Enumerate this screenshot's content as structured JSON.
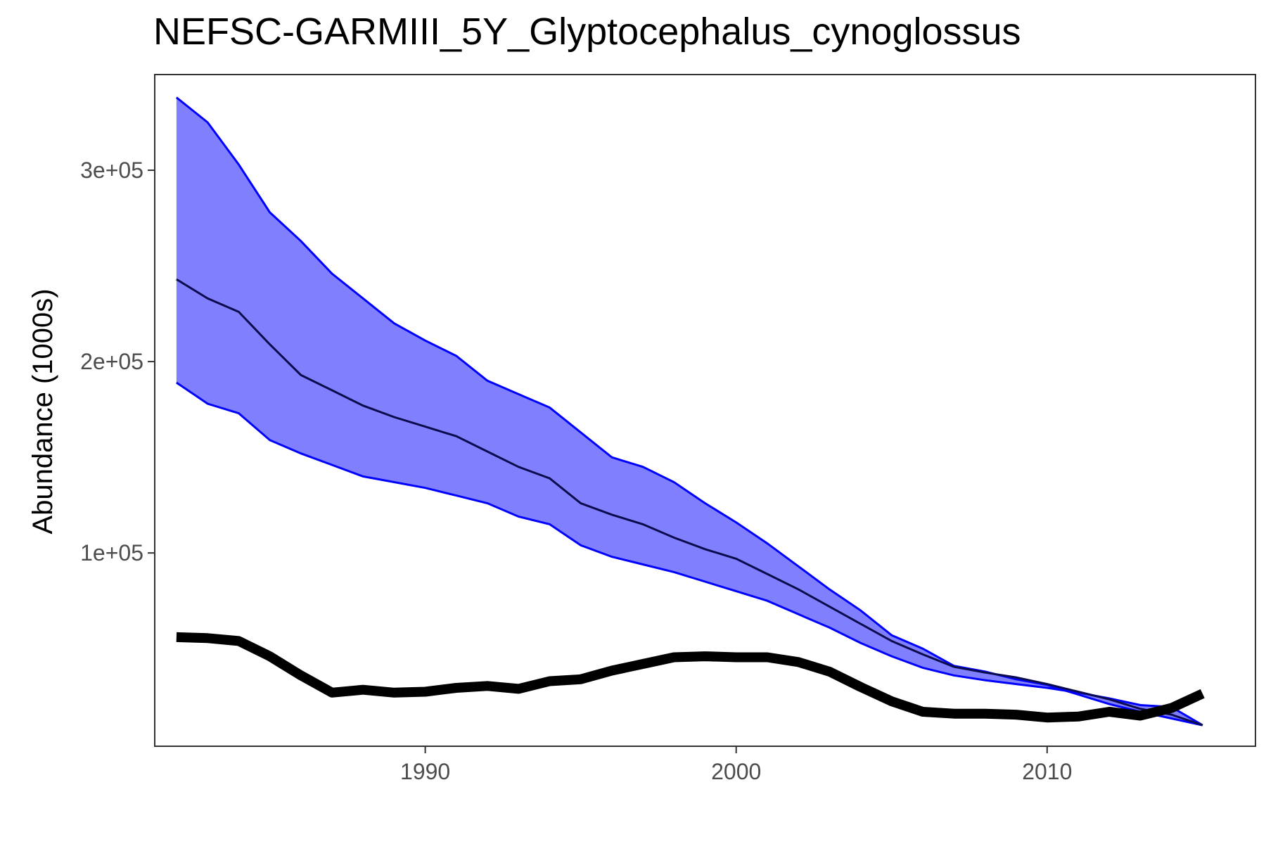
{
  "chart_data": {
    "type": "line",
    "title": "NEFSC-GARMIII_5Y_Glyptocephalus_cynoglossus",
    "xlabel": "",
    "ylabel": "Abundance (1000s)",
    "xlim": [
      1981.3,
      2016.7
    ],
    "ylim": [
      -1000,
      350000
    ],
    "x_ticks": [
      1990,
      2000,
      2010
    ],
    "y_ticks": [
      100000,
      200000,
      300000
    ],
    "y_tick_labels": [
      "1e+05",
      "2e+05",
      "3e+05"
    ],
    "grid": false,
    "legend": "none",
    "colors": {
      "band_fill": "#8080ff",
      "band_edge": "#0000ff",
      "median": "#0b0b4d",
      "observed": "#000000",
      "frame": "#333333"
    },
    "x": [
      1982,
      1983,
      1984,
      1985,
      1986,
      1987,
      1988,
      1989,
      1990,
      1991,
      1992,
      1993,
      1994,
      1995,
      1996,
      1997,
      1998,
      1999,
      2000,
      2001,
      2002,
      2003,
      2004,
      2005,
      2006,
      2007,
      2008,
      2009,
      2010,
      2011,
      2012,
      2013,
      2014,
      2015
    ],
    "series": [
      {
        "role": "band-upper",
        "values": [
          338000,
          325000,
          303000,
          278000,
          263000,
          246000,
          233000,
          220000,
          211000,
          203000,
          190000,
          183000,
          176000,
          163000,
          150000,
          145000,
          137000,
          126000,
          116000,
          105000,
          93000,
          81000,
          70000,
          57000,
          50000,
          41000,
          38000,
          34000,
          31000,
          26000,
          21000,
          17000,
          13500,
          10000
        ]
      },
      {
        "role": "band-lower",
        "values": [
          189000,
          178000,
          173000,
          159000,
          152000,
          146000,
          140000,
          137000,
          134000,
          130000,
          126000,
          119000,
          115000,
          104000,
          98000,
          94000,
          90000,
          85000,
          80000,
          75000,
          68000,
          61000,
          53000,
          46000,
          40000,
          36000,
          33500,
          31500,
          29500,
          27000,
          24000,
          20500,
          19500,
          10000
        ]
      },
      {
        "role": "median",
        "values": [
          243000,
          233000,
          226000,
          209000,
          193000,
          185000,
          177000,
          171000,
          166000,
          161000,
          153000,
          145000,
          139000,
          126000,
          120000,
          115000,
          108000,
          102000,
          97000,
          89000,
          81000,
          72000,
          63000,
          54000,
          47000,
          40500,
          37500,
          35000,
          31500,
          27500,
          23500,
          18500,
          15500,
          10000
        ]
      },
      {
        "role": "observed",
        "values": [
          56000,
          55500,
          54000,
          46000,
          36000,
          27000,
          28500,
          27000,
          27500,
          29500,
          30500,
          29000,
          33000,
          34000,
          38500,
          42000,
          45500,
          46000,
          45500,
          45500,
          43000,
          38000,
          30000,
          22500,
          17000,
          16000,
          16000,
          15500,
          14000,
          14500,
          17000,
          15000,
          19000,
          26500
        ]
      }
    ]
  }
}
